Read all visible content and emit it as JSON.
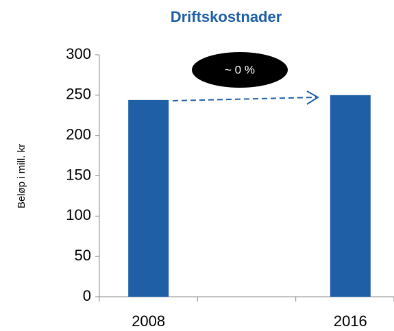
{
  "chart_data": {
    "type": "bar",
    "title": "Driftskostnader",
    "y_label": "Beløp i mill. kr",
    "categories": [
      "2008",
      null,
      "2016"
    ],
    "values": [
      244,
      null,
      250
    ],
    "color": "#1f5fa6",
    "ylim": [
      0,
      300
    ],
    "yticks": [
      0,
      50,
      100,
      150,
      200,
      250,
      300
    ],
    "grid": false,
    "annotation": "~ 0 %"
  }
}
